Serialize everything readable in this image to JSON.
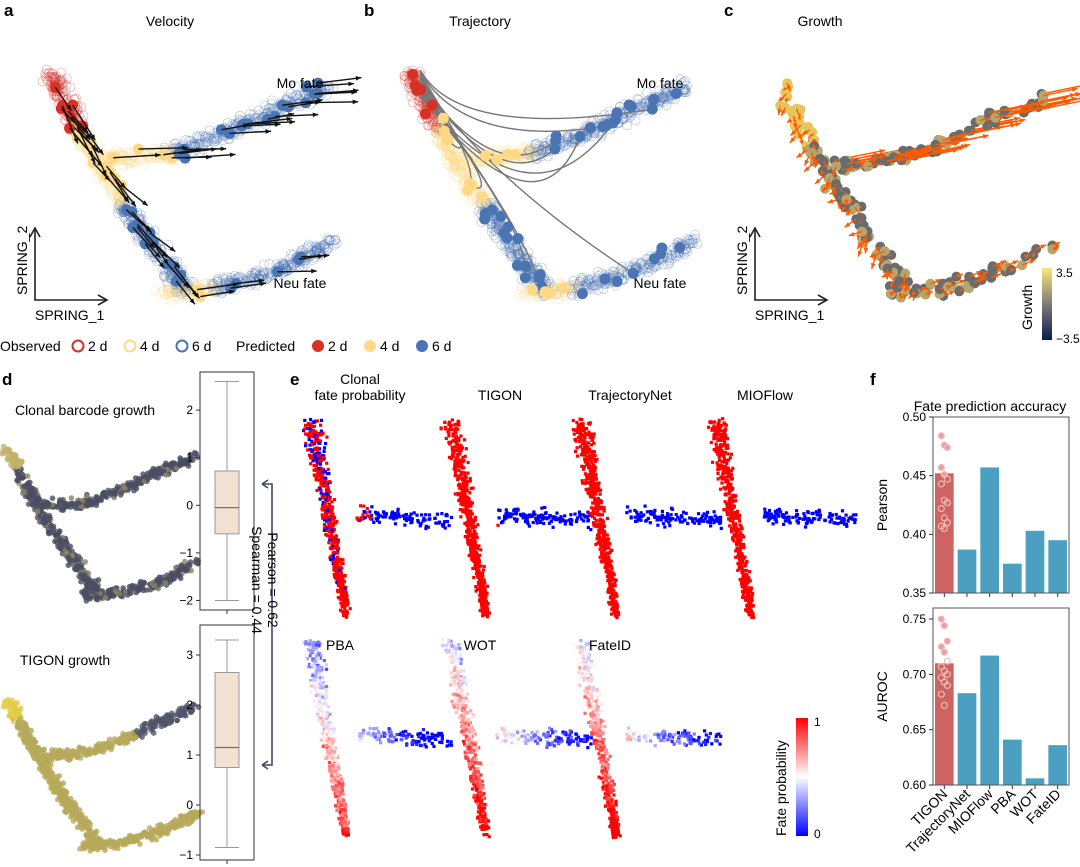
{
  "panels": {
    "a": {
      "label": "a",
      "title": "Velocity",
      "mo": "Mo fate",
      "neu": "Neu fate"
    },
    "b": {
      "label": "b",
      "title": "Trajectory",
      "mo": "Mo fate",
      "neu": "Neu fate"
    },
    "c": {
      "label": "c",
      "title": "Growth",
      "colorbar_label": "Growth",
      "colorbar_max": "3.5",
      "colorbar_min": "−3.5"
    },
    "d": {
      "label": "d",
      "top_title": "Clonal barcode growth",
      "bottom_title": "TIGON growth",
      "stat1": "Spearman = 0.44",
      "stat2": "Pearson = 0.62"
    },
    "e": {
      "label": "e",
      "methods": [
        "Clonal\nfate probability",
        "TIGON",
        "TrajectoryNet",
        "MIOFlow",
        "PBA",
        "WOT",
        "FateID"
      ],
      "colorbar_label": "Fate probability",
      "colorbar_max": "1",
      "colorbar_min": "0"
    },
    "f": {
      "label": "f",
      "title": "Fate prediction accuracy"
    }
  },
  "axes": {
    "x": "SPRING_1",
    "y": "SPRING_2"
  },
  "legend": {
    "observed": "Observed",
    "predicted": "Predicted",
    "items": [
      "2 d",
      "4 d",
      "6 d"
    ],
    "colors": [
      "#d73027",
      "#fdd985",
      "#4a74b4"
    ]
  },
  "colors": {
    "tigon": "#cd6461",
    "others": "#4b9fc0",
    "box": "#f3e2d3",
    "arrow": "#ff5a00",
    "red": "#ff0000",
    "blue": "#0000ff"
  },
  "chart_data": [
    {
      "type": "bar",
      "title": "Fate prediction accuracy",
      "ylabel": "Pearson",
      "categories": [
        "TIGON",
        "TrajectoryNet",
        "MIOFlow",
        "PBA",
        "WOT",
        "FateID"
      ],
      "values": [
        0.452,
        0.387,
        0.457,
        0.375,
        0.403,
        0.395
      ],
      "ylim": [
        0.35,
        0.5
      ],
      "yticks": [
        "0.35",
        "0.40",
        "0.45",
        "0.50"
      ],
      "tigon_points": [
        0.484,
        0.476,
        0.474,
        0.457,
        0.451,
        0.447,
        0.443,
        0.429,
        0.427,
        0.422,
        0.414,
        0.41,
        0.407,
        0.405
      ]
    },
    {
      "type": "bar",
      "ylabel": "AUROC",
      "categories": [
        "TIGON",
        "TrajectoryNet",
        "MIOFlow",
        "PBA",
        "WOT",
        "FateID"
      ],
      "values": [
        0.71,
        0.683,
        0.717,
        0.641,
        0.606,
        0.636
      ],
      "ylim": [
        0.6,
        0.76
      ],
      "yticks": [
        "0.60",
        "0.65",
        "0.70",
        "0.75"
      ],
      "tigon_points": [
        0.75,
        0.744,
        0.73,
        0.725,
        0.72,
        0.712,
        0.707,
        0.703,
        0.7,
        0.697,
        0.693,
        0.69,
        0.682,
        0.672
      ]
    },
    {
      "type": "box",
      "title": "Clonal barcode growth",
      "min": -2.0,
      "q1": -0.6,
      "median": -0.05,
      "q3": 0.72,
      "max": 2.6,
      "ylim": [
        -2.2,
        2.8
      ],
      "yticks": [
        "−2",
        "−1",
        "0",
        "1",
        "2"
      ]
    },
    {
      "type": "box",
      "title": "TIGON growth",
      "min": -0.85,
      "q1": 0.75,
      "median": 1.15,
      "q3": 2.65,
      "max": 3.3,
      "ylim": [
        -1.1,
        3.6
      ],
      "yticks": [
        "−1",
        "0",
        "1",
        "2",
        "3"
      ]
    }
  ]
}
